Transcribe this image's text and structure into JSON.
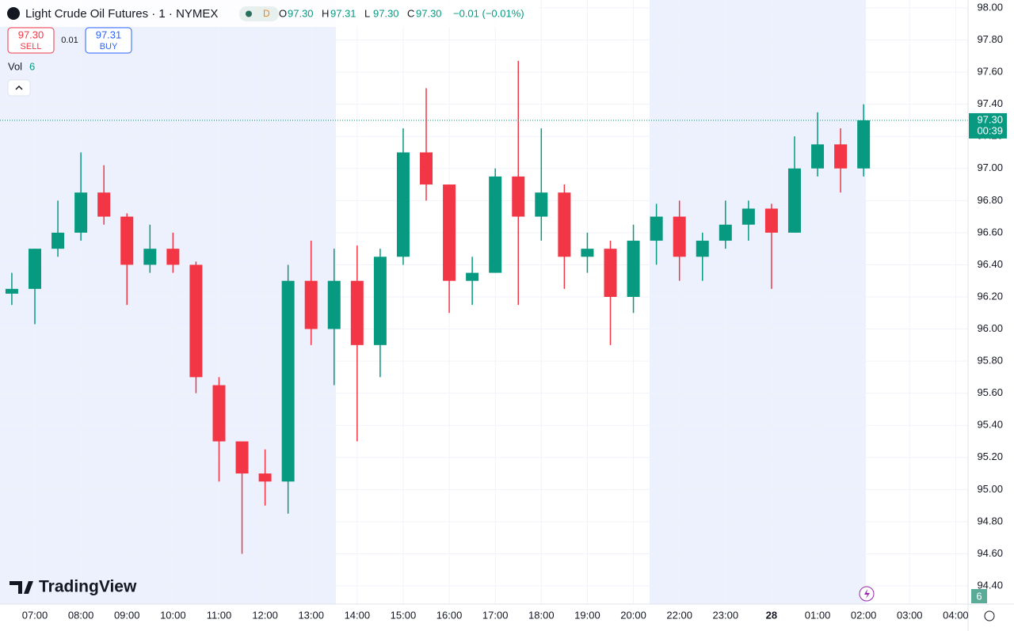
{
  "chart_data": {
    "type": "candlestick",
    "title": "Light Crude Oil Futures · 1 · NYMEX",
    "interval_badge": "D",
    "legend": [
      {
        "key": "O",
        "value": "97.30"
      },
      {
        "key": "H",
        "value": "97.31"
      },
      {
        "key": "L",
        "value": "97.30"
      },
      {
        "key": "C",
        "value": "97.30"
      }
    ],
    "change": "−0.01 (−0.01%)",
    "sell": {
      "price": "97.30",
      "label": "SELL"
    },
    "spread": "0.01",
    "buy": {
      "price": "97.31",
      "label": "BUY"
    },
    "volume_label": "Vol",
    "volume_value": "6",
    "brand": "TradingView",
    "last_price": {
      "value": 97.3,
      "label": "97.30"
    },
    "countdown": "00:39",
    "up_color": "#089981",
    "down_color": "#f23645",
    "categories": [
      null,
      "07:00",
      null,
      "08:00",
      null,
      "09:00",
      null,
      "10:00",
      null,
      "11:00",
      null,
      "12:00",
      null,
      "13:00",
      null,
      "14:00",
      null,
      "15:00",
      null,
      "16:00",
      null,
      "17:00",
      null,
      "18:00",
      null,
      "19:00",
      null,
      "20:00",
      null,
      "22:00",
      null,
      "23:00",
      null,
      "28",
      null,
      "01:00",
      null,
      "02:00",
      null,
      "03:00",
      null,
      "04:00"
    ],
    "open": [
      96.22,
      96.25,
      96.5,
      96.6,
      96.85,
      96.7,
      96.4,
      96.5,
      96.4,
      95.65,
      95.3,
      95.1,
      95.05,
      96.3,
      96.0,
      96.3,
      95.9,
      96.45,
      97.1,
      96.9,
      96.3,
      96.35,
      96.95,
      96.7,
      96.85,
      96.45,
      96.5,
      96.2,
      96.55,
      96.7,
      96.45,
      96.55,
      96.65,
      96.75,
      96.6,
      97.0,
      97.15,
      97.0,
      null,
      null,
      null,
      null
    ],
    "high": [
      96.35,
      96.5,
      96.8,
      97.1,
      97.02,
      96.72,
      96.65,
      96.6,
      96.42,
      95.7,
      95.3,
      95.25,
      96.4,
      96.55,
      96.5,
      96.52,
      96.5,
      97.25,
      97.5,
      96.9,
      96.45,
      97.0,
      97.67,
      97.25,
      96.9,
      96.6,
      96.55,
      96.65,
      96.78,
      96.8,
      96.6,
      96.8,
      96.8,
      96.78,
      97.2,
      97.35,
      97.25,
      97.4,
      null,
      null,
      null,
      null
    ],
    "low": [
      96.15,
      96.03,
      96.45,
      96.55,
      96.65,
      96.15,
      96.35,
      96.35,
      95.6,
      95.05,
      94.6,
      94.9,
      94.85,
      95.9,
      95.65,
      95.3,
      95.7,
      96.4,
      96.8,
      96.1,
      96.15,
      96.35,
      96.15,
      96.55,
      96.25,
      96.35,
      95.9,
      96.1,
      96.4,
      96.3,
      96.3,
      96.5,
      96.55,
      96.25,
      96.6,
      96.95,
      96.85,
      96.95,
      null,
      null,
      null,
      null
    ],
    "close": [
      96.25,
      96.5,
      96.6,
      96.85,
      96.7,
      96.4,
      96.5,
      96.4,
      95.7,
      95.3,
      95.1,
      95.05,
      96.3,
      96.0,
      96.3,
      95.9,
      96.45,
      97.1,
      96.9,
      96.3,
      96.35,
      96.95,
      96.7,
      96.85,
      96.45,
      96.5,
      96.2,
      96.55,
      96.7,
      96.45,
      96.55,
      96.65,
      96.75,
      96.6,
      97.0,
      97.15,
      97.0,
      97.3,
      null,
      null,
      null,
      null
    ],
    "ylim": [
      94.4,
      98.0
    ],
    "yticks": [
      {
        "value": 94.4,
        "label": "94.40"
      },
      {
        "value": 94.6,
        "label": "94.60"
      },
      {
        "value": 94.8,
        "label": "94.80"
      },
      {
        "value": 95.0,
        "label": "95.00"
      },
      {
        "value": 95.2,
        "label": "95.20"
      },
      {
        "value": 95.4,
        "label": "95.40"
      },
      {
        "value": 95.6,
        "label": "95.60"
      },
      {
        "value": 95.8,
        "label": "95.80"
      },
      {
        "value": 96.0,
        "label": "96.00"
      },
      {
        "value": 96.2,
        "label": "96.20"
      },
      {
        "value": 96.4,
        "label": "96.40"
      },
      {
        "value": 96.6,
        "label": "96.60"
      },
      {
        "value": 96.8,
        "label": "96.80"
      },
      {
        "value": 97.0,
        "label": "97.00"
      },
      {
        "value": 97.2,
        "label": "97.20"
      },
      {
        "value": 97.4,
        "label": "97.40"
      },
      {
        "value": 97.6,
        "label": "97.60"
      },
      {
        "value": 97.8,
        "label": "97.80"
      },
      {
        "value": 98.0,
        "label": "98.00"
      }
    ],
    "grid": true
  }
}
